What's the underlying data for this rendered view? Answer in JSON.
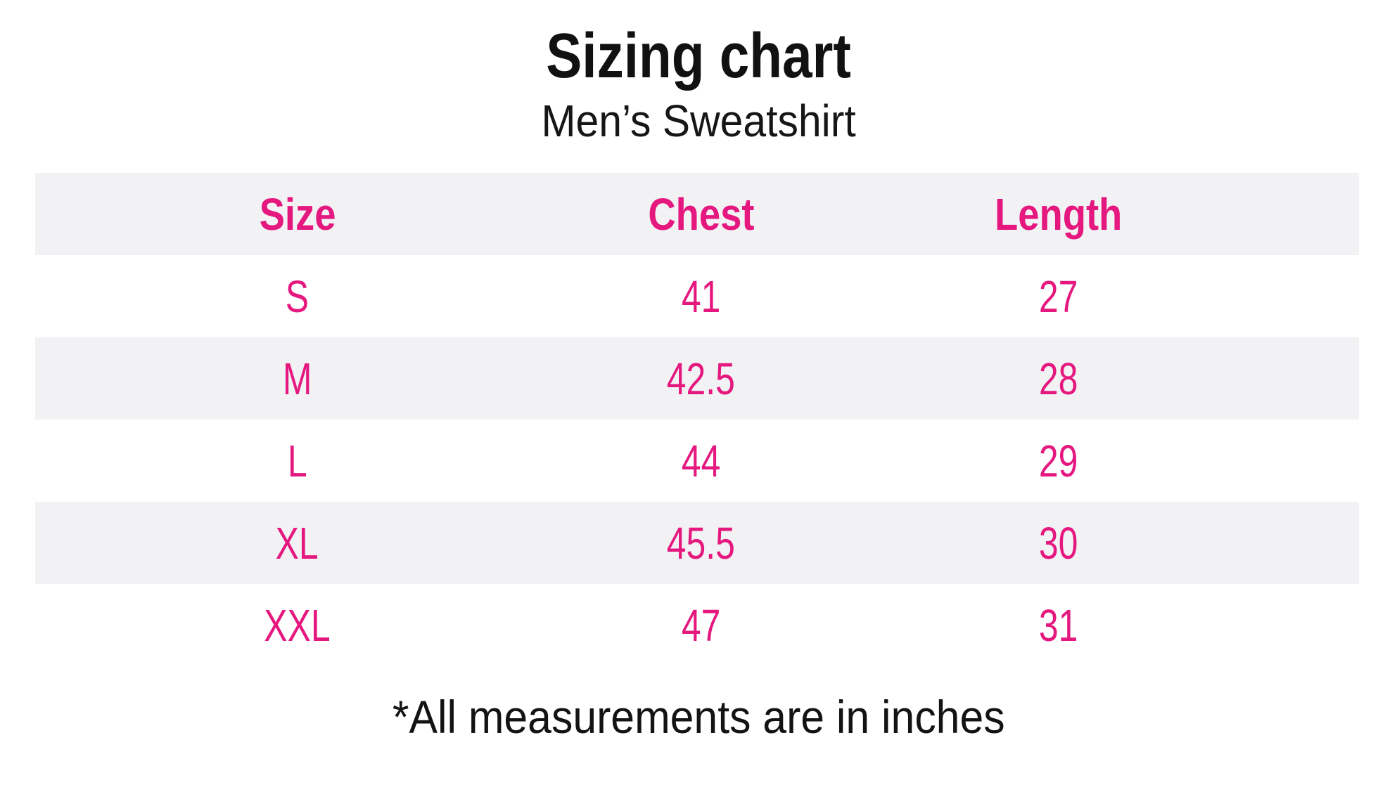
{
  "header": {
    "title": "Sizing chart",
    "subtitle": "Men’s Sweatshirt"
  },
  "footnote": "*All measurements are in inches",
  "colors": {
    "accent_pink": "#e5187f",
    "row_stripe_gray": "#f2f2f4",
    "text_black": "#111111",
    "background": "#ffffff"
  },
  "chart_data": {
    "type": "table",
    "title": "Sizing chart",
    "subtitle": "Men's Sweatshirt",
    "columns": [
      "Size",
      "Chest",
      "Length"
    ],
    "rows": [
      [
        "S",
        "41",
        "27"
      ],
      [
        "M",
        "42.5",
        "28"
      ],
      [
        "L",
        "44",
        "29"
      ],
      [
        "XL",
        "45.5",
        "30"
      ],
      [
        "XXL",
        "47",
        "31"
      ]
    ],
    "footnote": "*All measurements are in inches",
    "units": "inches",
    "layout": {
      "striped_rows": true,
      "stripe_pattern": "header, M, XL rows shaded",
      "legend": "none",
      "grid": "off"
    }
  }
}
